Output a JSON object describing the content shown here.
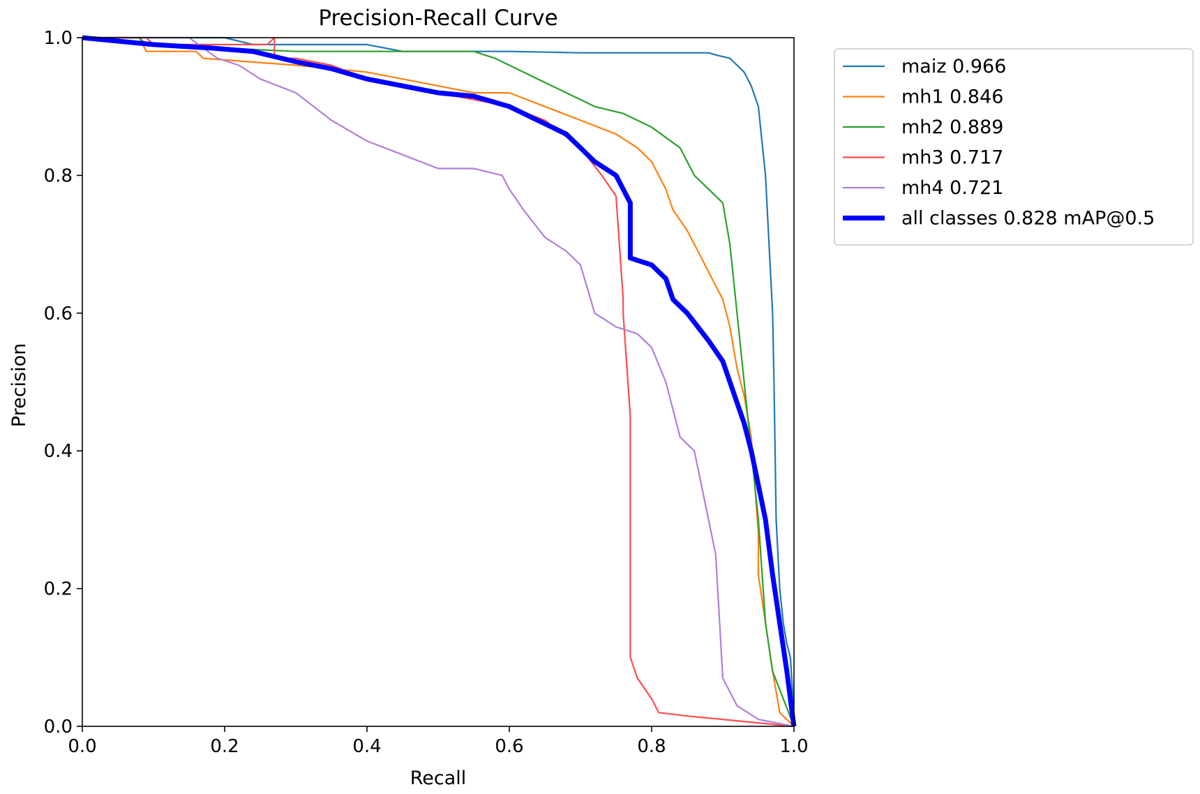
{
  "chart_data": {
    "type": "line",
    "title": "Precision-Recall Curve",
    "xlabel": "Recall",
    "ylabel": "Precision",
    "xlim": [
      0,
      1
    ],
    "ylim": [
      0,
      1
    ],
    "xticks": [
      0.0,
      0.2,
      0.4,
      0.6,
      0.8,
      1.0
    ],
    "yticks": [
      0.0,
      0.2,
      0.4,
      0.6,
      0.8,
      1.0
    ],
    "xtick_labels": [
      "0.0",
      "0.2",
      "0.4",
      "0.6",
      "0.8",
      "1.0"
    ],
    "ytick_labels": [
      "0.0",
      "0.2",
      "0.4",
      "0.6",
      "0.8",
      "1.0"
    ],
    "legend_position": "outside-top-right",
    "series": [
      {
        "name": "maiz",
        "label": "maiz 0.966",
        "color": "#1f77b4",
        "emphasis": "normal",
        "x": [
          0.0,
          0.2,
          0.24,
          0.4,
          0.45,
          0.5,
          0.6,
          0.7,
          0.8,
          0.88,
          0.89,
          0.91,
          0.92,
          0.93,
          0.94,
          0.95,
          0.955,
          0.96,
          0.965,
          0.97,
          0.972,
          0.975,
          0.98,
          0.985,
          0.99,
          0.995,
          0.998,
          1.0
        ],
        "y": [
          1.0,
          1.0,
          0.99,
          0.99,
          0.98,
          0.98,
          0.98,
          0.978,
          0.978,
          0.978,
          0.975,
          0.97,
          0.96,
          0.95,
          0.93,
          0.9,
          0.85,
          0.8,
          0.7,
          0.6,
          0.5,
          0.3,
          0.2,
          0.15,
          0.12,
          0.1,
          0.05,
          0.0
        ]
      },
      {
        "name": "mh1",
        "label": "mh1 0.846",
        "color": "#ff7f0e",
        "emphasis": "normal",
        "x": [
          0.0,
          0.08,
          0.09,
          0.16,
          0.17,
          0.3,
          0.4,
          0.45,
          0.5,
          0.55,
          0.6,
          0.65,
          0.7,
          0.75,
          0.78,
          0.8,
          0.82,
          0.83,
          0.85,
          0.86,
          0.87,
          0.88,
          0.9,
          0.91,
          0.92,
          0.93,
          0.94,
          0.95,
          0.95,
          0.96,
          0.97,
          0.98,
          1.0
        ],
        "y": [
          1.0,
          1.0,
          0.98,
          0.98,
          0.97,
          0.96,
          0.95,
          0.94,
          0.93,
          0.92,
          0.92,
          0.9,
          0.88,
          0.86,
          0.84,
          0.82,
          0.78,
          0.75,
          0.72,
          0.7,
          0.68,
          0.66,
          0.62,
          0.58,
          0.52,
          0.48,
          0.42,
          0.28,
          0.22,
          0.15,
          0.08,
          0.02,
          0.0
        ]
      },
      {
        "name": "mh2",
        "label": "mh2 0.889",
        "color": "#2ca02c",
        "emphasis": "normal",
        "x": [
          0.0,
          0.08,
          0.09,
          0.3,
          0.4,
          0.5,
          0.55,
          0.58,
          0.6,
          0.62,
          0.66,
          0.7,
          0.72,
          0.76,
          0.8,
          0.84,
          0.86,
          0.88,
          0.9,
          0.91,
          0.92,
          0.93,
          0.94,
          0.95,
          0.96,
          0.97,
          1.0
        ],
        "y": [
          1.0,
          1.0,
          0.99,
          0.98,
          0.98,
          0.98,
          0.98,
          0.97,
          0.96,
          0.95,
          0.93,
          0.91,
          0.9,
          0.89,
          0.87,
          0.84,
          0.8,
          0.78,
          0.76,
          0.7,
          0.6,
          0.5,
          0.4,
          0.3,
          0.15,
          0.08,
          0.0
        ]
      },
      {
        "name": "mh3",
        "label": "mh3 0.717",
        "color": "#ff4b4b",
        "emphasis": "normal",
        "x": [
          0.0,
          0.09,
          0.1,
          0.26,
          0.27,
          0.27,
          0.3,
          0.35,
          0.4,
          0.45,
          0.5,
          0.55,
          0.6,
          0.65,
          0.7,
          0.73,
          0.75,
          0.76,
          0.76,
          0.77,
          0.77,
          0.78,
          0.8,
          0.81,
          0.85,
          0.9,
          0.95,
          1.0
        ],
        "y": [
          1.0,
          1.0,
          0.99,
          0.99,
          1.0,
          0.97,
          0.97,
          0.96,
          0.94,
          0.93,
          0.92,
          0.91,
          0.9,
          0.88,
          0.84,
          0.8,
          0.77,
          0.62,
          0.6,
          0.45,
          0.1,
          0.07,
          0.04,
          0.02,
          0.015,
          0.01,
          0.005,
          0.0
        ]
      },
      {
        "name": "mh4",
        "label": "mh4 0.721",
        "color": "#b07fd6",
        "emphasis": "normal",
        "x": [
          0.0,
          0.15,
          0.19,
          0.22,
          0.25,
          0.3,
          0.35,
          0.4,
          0.45,
          0.5,
          0.55,
          0.59,
          0.6,
          0.62,
          0.65,
          0.68,
          0.7,
          0.72,
          0.75,
          0.78,
          0.8,
          0.82,
          0.84,
          0.86,
          0.88,
          0.89,
          0.9,
          0.92,
          0.95,
          1.0
        ],
        "y": [
          1.0,
          1.0,
          0.97,
          0.96,
          0.94,
          0.92,
          0.88,
          0.85,
          0.83,
          0.81,
          0.81,
          0.8,
          0.78,
          0.75,
          0.71,
          0.69,
          0.67,
          0.6,
          0.58,
          0.57,
          0.55,
          0.5,
          0.42,
          0.4,
          0.3,
          0.25,
          0.07,
          0.03,
          0.01,
          0.0
        ]
      },
      {
        "name": "all classes",
        "label": "all classes 0.828 mAP@0.5",
        "color": "#0000ff",
        "emphasis": "bold",
        "x": [
          0.0,
          0.1,
          0.18,
          0.24,
          0.3,
          0.35,
          0.4,
          0.45,
          0.5,
          0.55,
          0.6,
          0.62,
          0.65,
          0.68,
          0.7,
          0.72,
          0.75,
          0.77,
          0.77,
          0.8,
          0.82,
          0.83,
          0.85,
          0.88,
          0.9,
          0.91,
          0.92,
          0.93,
          0.94,
          0.95,
          0.96,
          0.97,
          0.98,
          0.99,
          1.0
        ],
        "y": [
          1.0,
          0.99,
          0.985,
          0.98,
          0.965,
          0.955,
          0.94,
          0.93,
          0.92,
          0.915,
          0.9,
          0.89,
          0.875,
          0.86,
          0.84,
          0.82,
          0.8,
          0.76,
          0.68,
          0.67,
          0.65,
          0.62,
          0.6,
          0.56,
          0.53,
          0.5,
          0.47,
          0.44,
          0.4,
          0.35,
          0.3,
          0.22,
          0.15,
          0.08,
          0.0
        ]
      }
    ]
  }
}
